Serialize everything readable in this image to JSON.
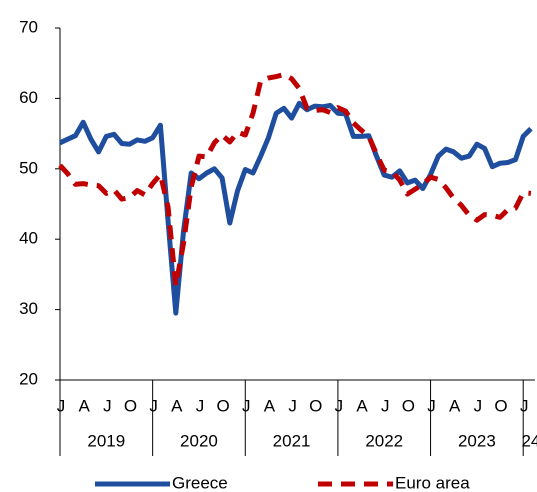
{
  "chart_data": {
    "type": "line",
    "categories": [
      "J",
      null,
      null,
      "A",
      null,
      null,
      "J",
      null,
      null,
      "O",
      null,
      null,
      "J",
      null,
      null,
      "A",
      null,
      null,
      "J",
      null,
      null,
      "O",
      null,
      null,
      "J",
      null,
      null,
      "A",
      null,
      null,
      "J",
      null,
      null,
      "O",
      null,
      null,
      "J",
      null,
      null,
      "A",
      null,
      null,
      "J",
      null,
      null,
      "O",
      null,
      null,
      "J",
      null,
      null,
      "A",
      null,
      null,
      "J",
      null,
      null,
      "O",
      null,
      null,
      "J",
      null
    ],
    "year_labels": [
      "2019",
      "2020",
      "2021",
      "2022",
      "2023",
      "24"
    ],
    "series": [
      {
        "name": "Greece",
        "color": "#1f4e9f",
        "dash": false,
        "values": [
          53.7,
          54.2,
          54.7,
          56.6,
          54.2,
          52.4,
          54.6,
          54.9,
          53.6,
          53.5,
          54.1,
          53.9,
          54.4,
          56.2,
          42.5,
          29.5,
          41.1,
          49.4,
          48.6,
          49.4,
          50.0,
          48.7,
          42.3,
          46.9,
          49.9,
          49.4,
          51.8,
          54.4,
          57.9,
          58.6,
          57.2,
          59.3,
          58.4,
          58.9,
          58.8,
          59.0,
          57.9,
          57.8,
          54.6,
          54.6,
          54.7,
          51.8,
          49.1,
          48.8,
          49.7,
          48.0,
          48.4,
          47.2,
          49.2,
          51.8,
          52.8,
          52.4,
          51.5,
          51.8,
          53.5,
          52.9,
          50.3,
          50.8,
          50.9,
          51.3,
          54.6,
          55.7
        ]
      },
      {
        "name": "Euro area",
        "color": "#c00000",
        "dash": true,
        "values": [
          50.5,
          49.3,
          47.8,
          47.9,
          47.7,
          47.6,
          46.5,
          47.0,
          45.7,
          45.9,
          46.9,
          46.3,
          47.9,
          49.2,
          44.5,
          33.4,
          39.4,
          47.4,
          51.8,
          51.7,
          53.7,
          54.8,
          53.8,
          55.2,
          54.8,
          57.9,
          62.5,
          62.9,
          63.1,
          63.4,
          62.8,
          61.4,
          58.6,
          58.3,
          58.4,
          58.0,
          58.7,
          58.2,
          56.5,
          55.5,
          54.6,
          52.1,
          49.8,
          49.6,
          48.4,
          46.4,
          47.1,
          47.8,
          48.8,
          48.5,
          47.3,
          45.8,
          44.8,
          43.4,
          42.7,
          43.5,
          43.4,
          43.1,
          44.2,
          44.4,
          46.6,
          46.5
        ]
      }
    ],
    "ylim": [
      20,
      70
    ],
    "yticks": [
      20,
      30,
      40,
      50,
      60,
      70
    ],
    "grid": false,
    "legend": "bottom"
  }
}
